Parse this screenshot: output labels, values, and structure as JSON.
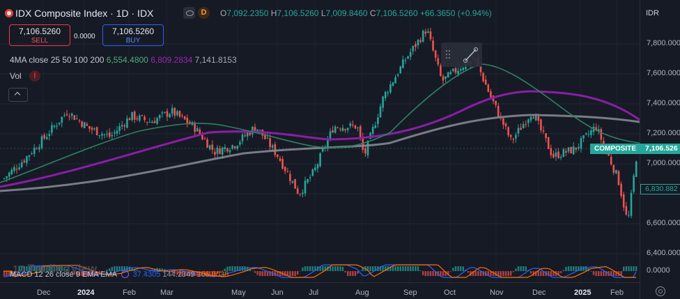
{
  "header": {
    "title": "IDX Composite Index · 1D · IDX",
    "interval_badge": "D",
    "ohlc": {
      "o_label": "O",
      "o_value": "7,092.2350",
      "h_label": "H",
      "h_value": "7,106.5260",
      "l_label": "L",
      "l_value": "7,009.8460",
      "c_label": "C",
      "c_value": "7,106.5260",
      "change": "+66.3650 (+0.94%)"
    }
  },
  "trade": {
    "sell_price": "7,106.5260",
    "sell_label": "SELL",
    "spread": "0.0000",
    "buy_price": "7,106.5260",
    "buy_label": "BUY"
  },
  "indicators": {
    "ma_title": "4MA close 25 50 100 200",
    "ma_v1": "6,554.4800",
    "ma_v2": "6,809.2834",
    "ma_v3": "7,141.8153",
    "vol_label": "Vol",
    "macd_title": "MACD 12 26 close 9 EMA EMA",
    "macd_v1": "37.4305",
    "macd_v2": "144.2349",
    "macd_v3": "106.8038"
  },
  "price_axis": {
    "currency": "IDR",
    "ticks": [
      "7,800.000",
      "7,600.000",
      "7,400.000",
      "7,200.000",
      "7,000.000",
      "6,800.000",
      "6,600.000",
      "6,400.000"
    ],
    "composite_label": "COMPOSITE",
    "composite_value": "7,106.526",
    "ma_value": "6,830.882",
    "macd_tick": "0.0000"
  },
  "time_axis": {
    "labels": [
      "Dec",
      "2024",
      "Feb",
      "Mar",
      "May",
      "Jun",
      "Jul",
      "Aug",
      "Sep",
      "Oct",
      "Nov",
      "Dec",
      "2025",
      "Feb"
    ]
  },
  "watermark": "TradingView",
  "colors": {
    "background": "#161a25",
    "up": "#26a69a",
    "down": "#ef5350",
    "ma_green": "#2e7d5b",
    "ma_purple": "#7b1fa2",
    "ma_gray": "#787b86",
    "composite_badge": "#26a69a"
  },
  "chart_data": {
    "type": "candlestick",
    "instrument": "IDX Composite Index",
    "ylim": [
      6400,
      7900
    ],
    "y_ticks": [
      6400,
      6600,
      6800,
      7000,
      7200,
      7400,
      7600,
      7800
    ],
    "last_close": 7106.526,
    "close_path": [
      {
        "date": "2023-11-20",
        "close": 6900
      },
      {
        "date": "2023-12-05",
        "close": 7030
      },
      {
        "date": "2023-12-20",
        "close": 7180
      },
      {
        "date": "2024-01-05",
        "close": 7350
      },
      {
        "date": "2024-01-20",
        "close": 7240
      },
      {
        "date": "2024-02-05",
        "close": 7180
      },
      {
        "date": "2024-02-20",
        "close": 7320
      },
      {
        "date": "2024-03-05",
        "close": 7280
      },
      {
        "date": "2024-03-20",
        "close": 7350
      },
      {
        "date": "2024-04-05",
        "close": 7250
      },
      {
        "date": "2024-04-20",
        "close": 7080
      },
      {
        "date": "2024-05-05",
        "close": 7130
      },
      {
        "date": "2024-05-20",
        "close": 7250
      },
      {
        "date": "2024-06-05",
        "close": 7050
      },
      {
        "date": "2024-06-20",
        "close": 6800
      },
      {
        "date": "2024-07-01",
        "close": 6950
      },
      {
        "date": "2024-07-15",
        "close": 7250
      },
      {
        "date": "2024-08-01",
        "close": 7250
      },
      {
        "date": "2024-08-06",
        "close": 7050
      },
      {
        "date": "2024-08-20",
        "close": 7450
      },
      {
        "date": "2024-09-05",
        "close": 7700
      },
      {
        "date": "2024-09-20",
        "close": 7900
      },
      {
        "date": "2024-10-01",
        "close": 7550
      },
      {
        "date": "2024-10-15",
        "close": 7650
      },
      {
        "date": "2024-10-25",
        "close": 7700
      },
      {
        "date": "2024-11-05",
        "close": 7450
      },
      {
        "date": "2024-11-20",
        "close": 7150
      },
      {
        "date": "2024-12-05",
        "close": 7350
      },
      {
        "date": "2024-12-20",
        "close": 7050
      },
      {
        "date": "2025-01-05",
        "close": 7100
      },
      {
        "date": "2025-01-20",
        "close": 7250
      },
      {
        "date": "2025-02-05",
        "close": 6900
      },
      {
        "date": "2025-02-12",
        "close": 6600
      },
      {
        "date": "2025-02-19",
        "close": 7106.5
      }
    ]
  }
}
